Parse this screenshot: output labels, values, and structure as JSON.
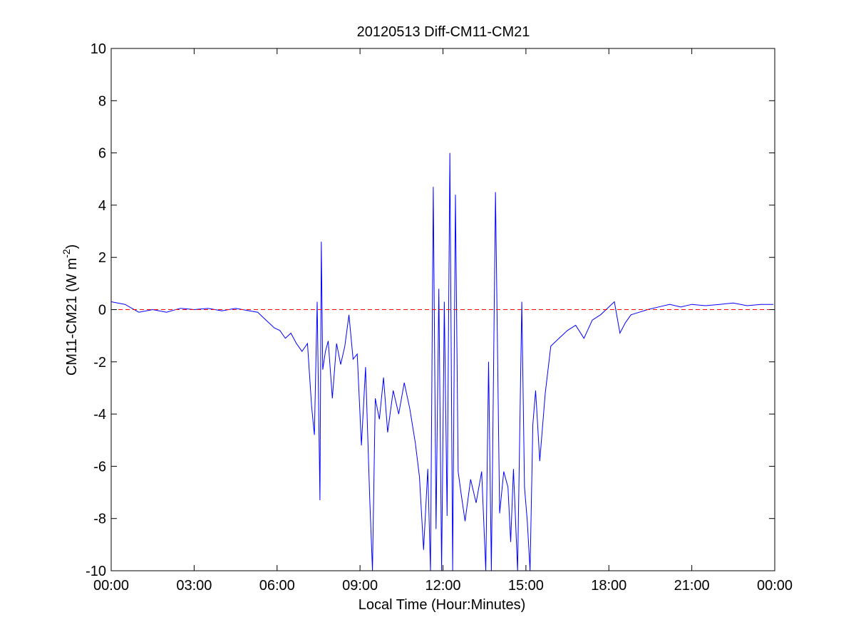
{
  "chart_data": {
    "type": "line",
    "title": "20120513 Diff-CM11-CM21",
    "xlabel": "Local Time (Hour:Minutes)",
    "ylabel": {
      "main": "CM11-CM21 (W m",
      "superscript": "-2",
      "close": ")"
    },
    "xlim": [
      0,
      24
    ],
    "ylim": [
      -10,
      10
    ],
    "x_ticks": [
      0,
      3,
      6,
      9,
      12,
      15,
      18,
      21,
      24
    ],
    "x_tick_labels": [
      "00:00",
      "03:00",
      "06:00",
      "09:00",
      "12:00",
      "15:00",
      "18:00",
      "21:00",
      "00:00"
    ],
    "y_ticks": [
      -10,
      -8,
      -6,
      -4,
      -2,
      0,
      2,
      4,
      6,
      8,
      10
    ],
    "y_tick_labels": [
      "-10",
      "-8",
      "-6",
      "-4",
      "-2",
      "0",
      "2",
      "4",
      "6",
      "8",
      "10"
    ],
    "grid": false,
    "series": [
      {
        "color": "#0000ff",
        "style": "solid",
        "x": [
          0.0,
          0.5,
          1.0,
          1.5,
          2.0,
          2.5,
          3.0,
          3.5,
          4.0,
          4.5,
          5.0,
          5.3,
          5.6,
          5.9,
          6.1,
          6.3,
          6.5,
          6.7,
          6.9,
          7.1,
          7.25,
          7.35,
          7.45,
          7.55,
          7.6,
          7.65,
          7.75,
          7.85,
          8.0,
          8.15,
          8.3,
          8.45,
          8.6,
          8.75,
          8.9,
          9.05,
          9.2,
          9.35,
          9.45,
          9.55,
          9.7,
          9.85,
          10.0,
          10.2,
          10.4,
          10.6,
          10.8,
          11.0,
          11.15,
          11.3,
          11.45,
          11.55,
          11.65,
          11.75,
          11.85,
          11.95,
          12.05,
          12.15,
          12.25,
          12.35,
          12.45,
          12.55,
          12.65,
          12.8,
          13.0,
          13.2,
          13.4,
          13.55,
          13.65,
          13.75,
          13.9,
          14.05,
          14.2,
          14.35,
          14.45,
          14.55,
          14.7,
          14.85,
          14.95,
          15.05,
          15.15,
          15.25,
          15.35,
          15.5,
          15.7,
          15.9,
          16.2,
          16.5,
          16.8,
          17.1,
          17.4,
          17.7,
          18.0,
          18.2,
          18.4,
          18.6,
          18.8,
          19.1,
          19.4,
          19.8,
          20.2,
          20.6,
          21.0,
          21.5,
          22.0,
          22.5,
          23.0,
          23.5,
          23.95
        ],
        "y": [
          0.3,
          0.2,
          -0.1,
          0.0,
          -0.1,
          0.05,
          0.0,
          0.05,
          -0.05,
          0.05,
          -0.05,
          -0.1,
          -0.4,
          -0.7,
          -0.8,
          -1.1,
          -0.9,
          -1.3,
          -1.6,
          -1.3,
          -3.7,
          -4.8,
          0.3,
          -7.3,
          2.6,
          -2.3,
          -1.6,
          -1.2,
          -3.4,
          -1.3,
          -2.1,
          -1.4,
          -0.2,
          -1.9,
          -1.7,
          -5.2,
          -2.2,
          -7.2,
          -10.0,
          -3.4,
          -4.2,
          -2.6,
          -4.7,
          -3.1,
          -4.0,
          -2.8,
          -3.8,
          -5.1,
          -6.4,
          -9.2,
          -6.1,
          -10.0,
          4.7,
          -8.4,
          0.8,
          -10.0,
          0.3,
          -7.9,
          6.0,
          -10.0,
          4.4,
          -6.2,
          -7.0,
          -8.1,
          -6.5,
          -7.4,
          -6.2,
          -10.0,
          -2.0,
          -10.0,
          4.5,
          -7.8,
          -6.2,
          -6.8,
          -8.9,
          -6.1,
          -10.0,
          0.3,
          -6.8,
          -8.1,
          -10.0,
          -4.4,
          -3.1,
          -5.8,
          -3.2,
          -1.4,
          -1.1,
          -0.8,
          -0.6,
          -1.1,
          -0.4,
          -0.2,
          0.1,
          0.3,
          -0.9,
          -0.5,
          -0.2,
          -0.1,
          0.0,
          0.1,
          0.2,
          0.1,
          0.2,
          0.15,
          0.2,
          0.25,
          0.15,
          0.2,
          0.2
        ]
      },
      {
        "color": "#ff0000",
        "style": "dashed",
        "x": [
          0,
          24
        ],
        "y": [
          0,
          0
        ]
      }
    ]
  }
}
